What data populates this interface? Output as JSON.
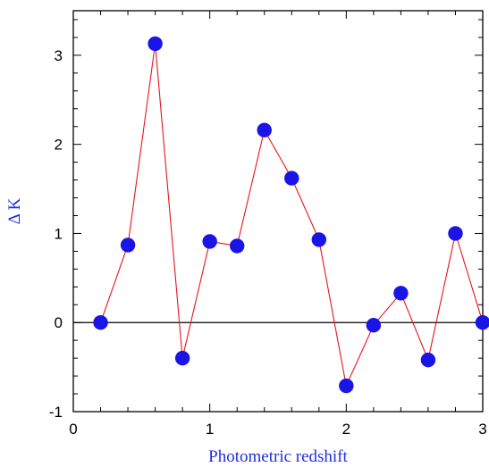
{
  "chart_data": {
    "type": "line",
    "title": "",
    "xlabel": "Photometric redshift",
    "ylabel": "Δ K",
    "xlim": [
      0,
      3
    ],
    "ylim": [
      -1,
      3.5
    ],
    "x_ticks": [
      0,
      1,
      2,
      3
    ],
    "y_ticks": [
      -1,
      0,
      1,
      2,
      3
    ],
    "x_tick_labels": [
      "0",
      "1",
      "2",
      "3"
    ],
    "y_tick_labels": [
      "-1",
      "0",
      "1",
      "2",
      "3"
    ],
    "reference_line_y": 0,
    "grid": false,
    "series": [
      {
        "x": [
          0.2,
          0.4,
          0.6,
          0.8,
          1.0,
          1.2,
          1.4,
          1.6,
          1.8,
          2.0,
          2.2,
          2.4,
          2.6,
          2.8,
          3.0
        ],
        "y": [
          0.0,
          0.87,
          3.13,
          -0.4,
          0.91,
          0.86,
          2.16,
          1.62,
          0.93,
          -0.71,
          -0.03,
          0.33,
          -0.42,
          1.0,
          0.0
        ],
        "line_color": "#e8141e",
        "marker_color": "#1a14e6"
      }
    ]
  },
  "colors": {
    "axis": "#000000",
    "label": "#1f2ee0",
    "reference_line": "#000000"
  }
}
